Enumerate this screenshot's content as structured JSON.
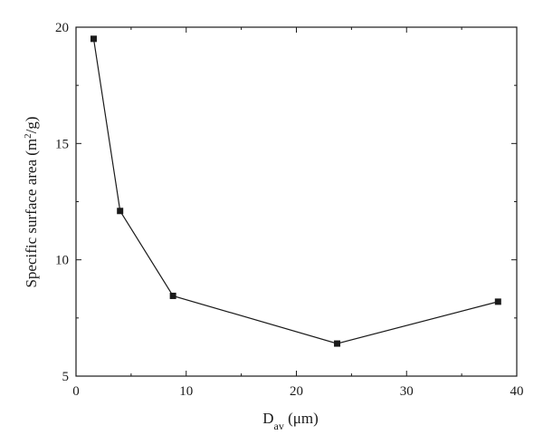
{
  "chart_data": {
    "type": "line",
    "title": "",
    "xlabel_main": "D",
    "xlabel_sub": "av",
    "xlabel_unit": " (μm)",
    "ylabel_main": "Specific surface area (m",
    "ylabel_sup": "2",
    "ylabel_unit": "/g)",
    "xlim": [
      0,
      40
    ],
    "ylim": [
      5,
      20
    ],
    "x_ticks": [
      0,
      10,
      20,
      30,
      40
    ],
    "y_ticks": [
      5,
      10,
      15,
      20
    ],
    "grid": false,
    "series": [
      {
        "x": [
          1.6,
          4.0,
          8.8,
          23.7,
          38.3
        ],
        "y": [
          19.5,
          12.1,
          8.45,
          6.4,
          8.2
        ],
        "marker": "square",
        "color": "#1a1a1a"
      }
    ]
  }
}
